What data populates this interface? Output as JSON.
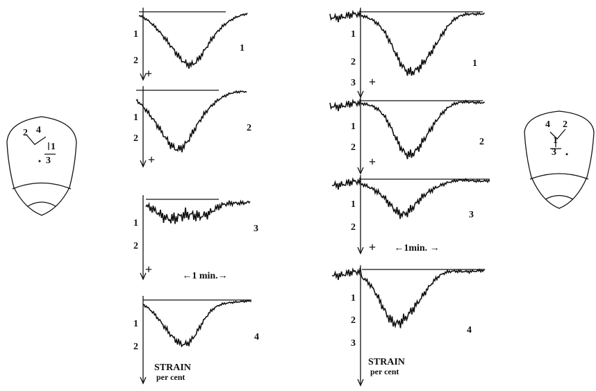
{
  "left_head": {
    "labels": [
      "2",
      "4",
      "1",
      "3"
    ]
  },
  "right_head": {
    "labels": [
      "4",
      "2",
      "1",
      "3"
    ]
  },
  "left_column": {
    "traces": [
      {
        "ticks": [
          "1",
          "2"
        ],
        "sign": "+",
        "label": "1"
      },
      {
        "ticks": [
          "1",
          "2"
        ],
        "sign": "+",
        "label": "2"
      },
      {
        "ticks": [
          "1",
          "2"
        ],
        "sign": "+",
        "label": "3"
      },
      {
        "ticks": [
          "1",
          "2"
        ],
        "label": "4"
      }
    ],
    "time_scale": "←1 min.→",
    "axis_label": [
      "STRAIN",
      "per cent"
    ]
  },
  "right_column": {
    "traces": [
      {
        "ticks": [
          "1",
          "2",
          "3"
        ],
        "sign": "+",
        "label": "1"
      },
      {
        "ticks": [
          "1",
          "2"
        ],
        "sign": "+",
        "label": "2"
      },
      {
        "ticks": [
          "1",
          "2"
        ],
        "sign": "+",
        "label": "3"
      },
      {
        "ticks": [
          "1",
          "2",
          "3"
        ],
        "label": "4"
      }
    ],
    "time_scale": "←1min. →",
    "axis_label": [
      "STRAIN",
      "per cent"
    ]
  }
}
